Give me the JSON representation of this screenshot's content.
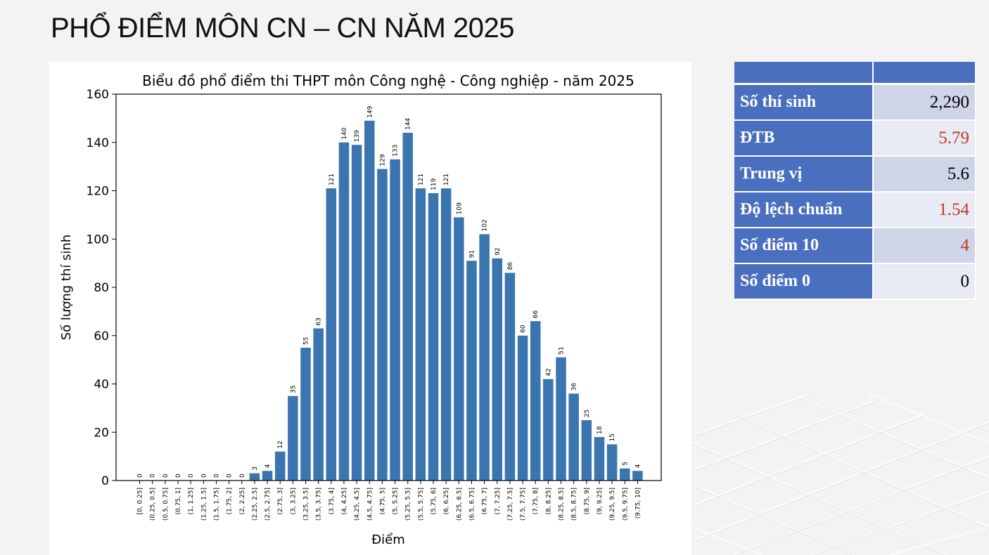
{
  "slide": {
    "title": "PHỔ ĐIỂM MÔN CN – CN NĂM 2025"
  },
  "stats": {
    "header": [
      "",
      ""
    ],
    "rows": [
      {
        "label": "Số thí sinh",
        "value": "2,290",
        "color": "#000000"
      },
      {
        "label": "ĐTB",
        "value": "5.79",
        "color": "#c0392b"
      },
      {
        "label": "Trung vị",
        "value": "5.6",
        "color": "#000000"
      },
      {
        "label": "Độ lệch chuẩn",
        "value": "1.54",
        "color": "#c0392b"
      },
      {
        "label": "Số điểm 10",
        "value": "4",
        "color": "#c0392b"
      },
      {
        "label": "Số điểm 0",
        "value": "0",
        "color": "#000000"
      }
    ]
  },
  "colors": {
    "bar": "#3b75af",
    "table_header": "#4b6fbf",
    "highlight_value": "#c0392b"
  },
  "chart_data": {
    "type": "bar",
    "title": "Biểu đồ phổ điểm thi THPT môn Công nghệ - Công nghiệp - năm 2025",
    "xlabel": "Điểm",
    "ylabel": "Số lượng thí sinh",
    "ylim": [
      0,
      160
    ],
    "yticks": [
      0,
      20,
      40,
      60,
      80,
      100,
      120,
      140,
      160
    ],
    "grid": false,
    "categories": [
      "[0, 0.25]",
      "(0.25, 0.5]",
      "(0.5, 0.75]",
      "(0.75, 1]",
      "(1, 1.25]",
      "(1.25, 1.5]",
      "(1.5, 1.75]",
      "(1.75, 2]",
      "(2, 2.25]",
      "(2.25, 2.5]",
      "(2.5, 2.75]",
      "(2.75, 3]",
      "(3, 3.25]",
      "(3.25, 3.5]",
      "(3.5, 3.75]",
      "(3.75, 4]",
      "(4, 4.25]",
      "(4.25, 4.5]",
      "(4.5, 4.75]",
      "(4.75, 5]",
      "(5, 5.25]",
      "(5.25, 5.5]",
      "(5.5, 5.75]",
      "(5.75, 6]",
      "(6, 6.25]",
      "(6.25, 6.5]",
      "(6.5, 6.75]",
      "(6.75, 7]",
      "(7, 7.25]",
      "(7.25, 7.5]",
      "(7.5, 7.75]",
      "(7.75, 8]",
      "(8, 8.25]",
      "(8.25, 8.5]",
      "(8.5, 8.75]",
      "(8.75, 9]",
      "(9, 9.25]",
      "(9.25, 9.5]",
      "(9.5, 9.75]",
      "(9.75, 10]"
    ],
    "values": [
      0,
      0,
      0,
      0,
      0,
      0,
      0,
      0,
      0,
      3,
      4,
      12,
      35,
      55,
      63,
      121,
      140,
      139,
      149,
      129,
      133,
      144,
      121,
      119,
      121,
      109,
      91,
      102,
      92,
      86,
      60,
      66,
      42,
      51,
      36,
      25,
      18,
      15,
      5,
      4
    ]
  }
}
